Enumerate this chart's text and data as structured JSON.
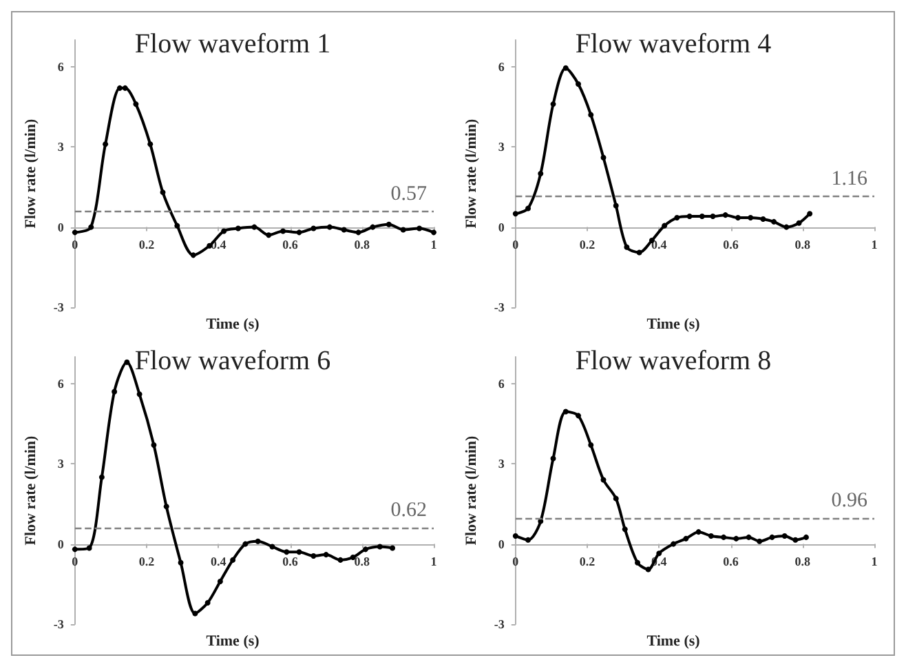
{
  "chart_data": [
    {
      "type": "line",
      "title": "Flow waveform 1",
      "xlabel": "Time (s)",
      "ylabel": "Flow rate (l/min)",
      "marker": "circle",
      "grid": false,
      "xlim": [
        0,
        1
      ],
      "xticks": [
        0,
        0.2,
        0.4,
        0.6,
        0.8,
        1
      ],
      "ylim": [
        -3,
        7
      ],
      "yticks": [
        -3,
        0,
        3,
        6
      ],
      "x": [
        0,
        0.045,
        0.085,
        0.125,
        0.14,
        0.17,
        0.21,
        0.245,
        0.285,
        0.33,
        0.375,
        0.415,
        0.455,
        0.5,
        0.54,
        0.58,
        0.625,
        0.665,
        0.71,
        0.75,
        0.79,
        0.83,
        0.875,
        0.915,
        0.96,
        1.0
      ],
      "series": [
        {
          "color": "#000000",
          "values": [
            -0.2,
            0,
            3.1,
            5.2,
            5.2,
            4.6,
            3.1,
            1.3,
            0.05,
            -1.05,
            -0.7,
            -0.15,
            -0.05,
            0,
            -0.3,
            -0.15,
            -0.2,
            -0.05,
            0,
            -0.1,
            -0.2,
            0,
            0.1,
            -0.1,
            -0.05,
            -0.2
          ]
        }
      ],
      "ref_lines": [
        {
          "axis": "y",
          "value": 0.57,
          "label": "0.57",
          "color": "#808080",
          "line_style": "dashed"
        }
      ]
    },
    {
      "type": "line",
      "title": "Flow waveform 4",
      "xlabel": "Time (s)",
      "ylabel": "Flow rate (l/min)",
      "marker": "circle",
      "grid": false,
      "xlim": [
        0,
        1
      ],
      "xticks": [
        0,
        0.2,
        0.4,
        0.6,
        0.8,
        1
      ],
      "ylim": [
        -3,
        7
      ],
      "yticks": [
        -3,
        0,
        3,
        6
      ],
      "x": [
        0,
        0.035,
        0.07,
        0.105,
        0.14,
        0.175,
        0.21,
        0.245,
        0.28,
        0.31,
        0.345,
        0.38,
        0.415,
        0.45,
        0.485,
        0.52,
        0.55,
        0.585,
        0.62,
        0.655,
        0.69,
        0.72,
        0.755,
        0.79,
        0.82
      ],
      "series": [
        {
          "color": "#000000",
          "values": [
            0.5,
            0.7,
            2.0,
            4.6,
            5.95,
            5.35,
            4.2,
            2.6,
            0.8,
            -0.75,
            -0.95,
            -0.5,
            0.05,
            0.35,
            0.4,
            0.4,
            0.4,
            0.45,
            0.35,
            0.35,
            0.3,
            0.2,
            0,
            0.15,
            0.5
          ]
        }
      ],
      "ref_lines": [
        {
          "axis": "y",
          "value": 1.16,
          "label": "1.16",
          "color": "#808080",
          "line_style": "dashed"
        }
      ]
    },
    {
      "type": "line",
      "title": "Flow waveform 6",
      "xlabel": "Time (s)",
      "ylabel": "Flow rate (l/min)",
      "marker": "circle",
      "grid": false,
      "xlim": [
        0,
        1
      ],
      "xticks": [
        0,
        0.2,
        0.4,
        0.6,
        0.8,
        1
      ],
      "ylim": [
        -3,
        7
      ],
      "yticks": [
        -3,
        0,
        3,
        6
      ],
      "x": [
        0,
        0.04,
        0.075,
        0.11,
        0.145,
        0.18,
        0.22,
        0.255,
        0.295,
        0.335,
        0.37,
        0.405,
        0.44,
        0.475,
        0.51,
        0.55,
        0.59,
        0.625,
        0.665,
        0.7,
        0.74,
        0.775,
        0.81,
        0.85,
        0.885
      ],
      "series": [
        {
          "color": "#000000",
          "values": [
            -0.2,
            -0.15,
            2.5,
            5.7,
            6.8,
            5.6,
            3.7,
            1.4,
            -0.7,
            -2.6,
            -2.2,
            -1.4,
            -0.6,
            0,
            0.1,
            -0.1,
            -0.3,
            -0.3,
            -0.45,
            -0.4,
            -0.6,
            -0.5,
            -0.2,
            -0.1,
            -0.15
          ]
        }
      ],
      "ref_lines": [
        {
          "axis": "y",
          "value": 0.62,
          "label": "0.62",
          "color": "#808080",
          "line_style": "dashed"
        }
      ]
    },
    {
      "type": "line",
      "title": "Flow waveform 8",
      "xlabel": "Time (s)",
      "ylabel": "Flow rate (l/min)",
      "marker": "circle",
      "grid": false,
      "xlim": [
        0,
        1
      ],
      "xticks": [
        0,
        0.2,
        0.4,
        0.6,
        0.8,
        1
      ],
      "ylim": [
        -3,
        7
      ],
      "yticks": [
        -3,
        0,
        3,
        6
      ],
      "x": [
        0,
        0.035,
        0.07,
        0.105,
        0.14,
        0.175,
        0.21,
        0.245,
        0.28,
        0.305,
        0.34,
        0.37,
        0.4,
        0.44,
        0.475,
        0.51,
        0.545,
        0.58,
        0.615,
        0.65,
        0.68,
        0.715,
        0.75,
        0.78,
        0.81
      ],
      "series": [
        {
          "color": "#000000",
          "values": [
            0.3,
            0.15,
            0.85,
            3.2,
            4.95,
            4.8,
            3.7,
            2.4,
            1.7,
            0.55,
            -0.7,
            -0.95,
            -0.35,
            0,
            0.2,
            0.45,
            0.3,
            0.25,
            0.2,
            0.25,
            0.1,
            0.25,
            0.3,
            0.15,
            0.25
          ]
        }
      ],
      "ref_lines": [
        {
          "axis": "y",
          "value": 0.96,
          "label": "0.96",
          "color": "#808080",
          "line_style": "dashed"
        }
      ]
    }
  ]
}
